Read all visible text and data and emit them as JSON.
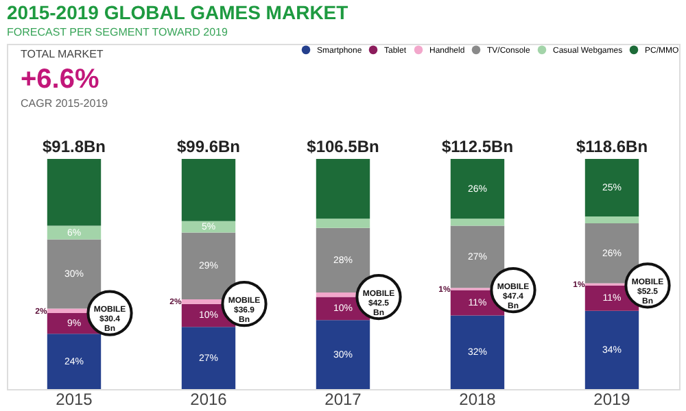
{
  "chart_data": {
    "type": "bar",
    "title": "2015-2019 GLOBAL GAMES MARKET",
    "subtitle": "FORECAST PER SEGMENT TOWARD 2019",
    "categories": [
      "2015",
      "2016",
      "2017",
      "2018",
      "2019"
    ],
    "stacked": true,
    "legend": "top right",
    "grid": false,
    "series": [
      {
        "name": "Smartphone",
        "color": "#243f8c",
        "values": [
          24,
          27,
          30,
          32,
          34
        ],
        "value_labels": [
          "24%",
          "27%",
          "30%",
          "32%",
          "34%"
        ]
      },
      {
        "name": "Tablet",
        "color": "#8c1c5c",
        "values": [
          9,
          10,
          10,
          11,
          11
        ],
        "value_labels": [
          "9%",
          "10%",
          "10%",
          "11%",
          "11%"
        ]
      },
      {
        "name": "Handheld",
        "color": "#f2a7cb",
        "values": [
          2,
          2,
          2,
          1,
          1
        ],
        "value_labels": [
          "2%",
          "2%",
          null,
          "1%",
          "1%"
        ]
      },
      {
        "name": "TV/Console",
        "color": "#8a8a8a",
        "values": [
          30,
          29,
          28,
          27,
          26
        ],
        "value_labels": [
          "30%",
          "29%",
          "28%",
          "27%",
          "26%"
        ]
      },
      {
        "name": "Casual Webgames",
        "color": "#a3d4a9",
        "values": [
          6,
          5,
          4,
          3,
          3
        ],
        "value_labels": [
          "6%",
          "5%",
          null,
          null,
          null
        ]
      },
      {
        "name": "PC/MMO",
        "color": "#1d6b38",
        "values": [
          29,
          27,
          26,
          26,
          25
        ],
        "value_labels": [
          null,
          null,
          null,
          "26%",
          "25%"
        ]
      }
    ],
    "annotations": [
      "TOTAL MARKET",
      "+6.6%",
      "CAGR 2015-2019",
      {
        "text": "$91.8Bn",
        "x": "2015",
        "y": 100
      },
      {
        "text": "$99.6Bn",
        "x": "2016",
        "y": 100
      },
      {
        "text": "$106.5Bn",
        "x": "2017",
        "y": 100
      },
      {
        "text": "$112.5Bn",
        "x": "2018",
        "y": 100
      },
      {
        "text": "$118.6Bn",
        "x": "2019",
        "y": 100
      },
      {
        "text": "MOBILE\n$30.4\nBn",
        "x": "2015",
        "y": 33
      },
      {
        "text": "MOBILE\n$36.9\nBn",
        "x": "2016",
        "y": 37
      },
      {
        "text": "MOBILE\n$42.5\nBn",
        "x": "2017",
        "y": 40
      },
      {
        "text": "MOBILE\n$47.4\nBn",
        "x": "2018",
        "y": 43
      },
      {
        "text": "MOBILE\n$52.5\nBn",
        "x": "2019",
        "y": 45
      }
    ]
  }
}
